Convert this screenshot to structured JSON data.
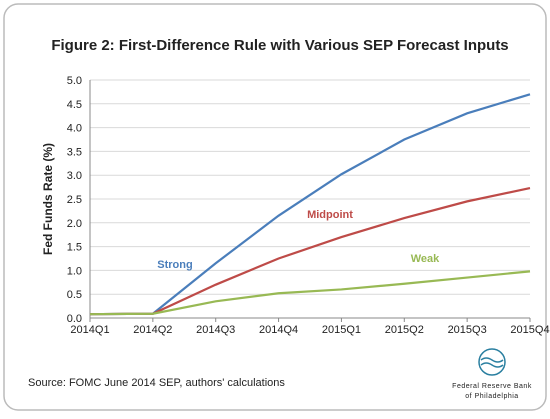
{
  "chart_data": {
    "type": "line",
    "title": "Figure 2: First-Difference Rule with Various SEP Forecast Inputs",
    "y_label": "Fed Funds Rate (%)",
    "categories": [
      "2014Q1",
      "2014Q2",
      "2014Q3",
      "2014Q4",
      "2015Q1",
      "2015Q2",
      "2015Q3",
      "2015Q4"
    ],
    "series": [
      {
        "name": "Strong",
        "color": "#4a7ebb",
        "values": [
          0.08,
          0.09,
          1.15,
          2.15,
          3.02,
          3.75,
          4.3,
          4.7
        ]
      },
      {
        "name": "Midpoint",
        "color": "#be4b48",
        "values": [
          0.08,
          0.09,
          0.7,
          1.25,
          1.7,
          2.1,
          2.45,
          2.73
        ]
      },
      {
        "name": "Weak",
        "color": "#98b954",
        "values": [
          0.08,
          0.09,
          0.35,
          0.52,
          0.6,
          0.72,
          0.85,
          0.98
        ]
      }
    ],
    "ylim": [
      0,
      5
    ],
    "yticks": [
      {
        "value": 0,
        "label": "0.0"
      },
      0.5,
      {
        "value": 1,
        "label": "1.0"
      },
      1.5,
      {
        "value": 2,
        "label": "2.0"
      },
      2.5,
      {
        "value": 3,
        "label": "3.0"
      },
      3.5,
      {
        "value": 4,
        "label": "4.0"
      },
      4.5,
      {
        "value": 5,
        "label": "5.0"
      }
    ],
    "grid": true,
    "source": "Source:  FOMC June 2014 SEP, authors' calculations"
  },
  "branding": [
    "Federal Reserve Bank",
    "of Philadelphia"
  ]
}
